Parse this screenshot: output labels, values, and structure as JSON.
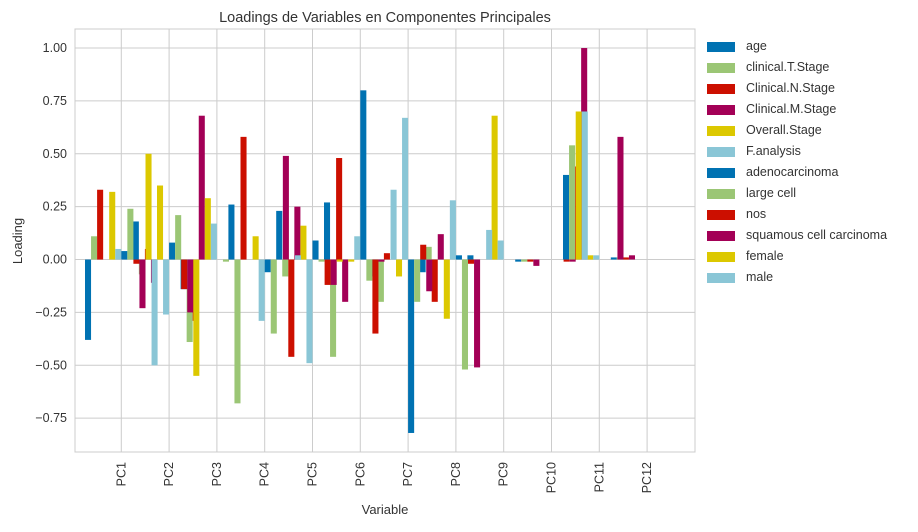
{
  "chart_data": {
    "type": "bar",
    "title": "Loadings de Variables en Componentes Principales",
    "xlabel": "Variable",
    "ylabel": "Loading",
    "ylim": [
      -0.91,
      1.09
    ],
    "yticks": [
      1.0,
      0.75,
      0.5,
      0.25,
      0.0,
      -0.25,
      -0.5,
      -0.75
    ],
    "ytick_labels": [
      "1.00",
      "0.75",
      "0.50",
      "0.25",
      "0.00",
      "−0.25",
      "−0.50",
      "−0.75"
    ],
    "grid": true,
    "legend_position": "outside-right",
    "categories": [
      "PC1",
      "PC2",
      "PC3",
      "PC4",
      "PC5",
      "PC6",
      "PC7",
      "PC8",
      "PC9",
      "PC10",
      "PC11",
      "PC12"
    ],
    "series": [
      {
        "name": "age",
        "color": "#0072b2",
        "values": [
          -0.38,
          0.18,
          -0.14,
          0.26,
          0.23,
          0.27,
          -0.08,
          -0.06,
          0.02,
          -0.01,
          0.4,
          0.01
        ]
      },
      {
        "name": "clinical.T.Stage",
        "color": "#9bc675",
        "values": [
          0.11,
          -0.07,
          -0.39,
          -0.68,
          -0.08,
          -0.46,
          -0.2,
          0.06,
          0.0,
          -0.01,
          0.54,
          0.01
        ]
      },
      {
        "name": "Clinical.N.Stage",
        "color": "#cc0f00",
        "values": [
          0.33,
          0.05,
          -0.29,
          0.58,
          -0.46,
          0.48,
          0.03,
          -0.2,
          0.0,
          -0.01,
          0.44,
          0.01
        ]
      },
      {
        "name": "Clinical.M.Stage",
        "color": "#a30056",
        "values": [
          0.0,
          -0.11,
          0.68,
          0.0,
          0.25,
          -0.2,
          0.0,
          0.12,
          0.0,
          -0.03,
          1.0,
          0.02
        ]
      },
      {
        "name": "Overall.Stage",
        "color": "#dcc800",
        "values": [
          0.32,
          0.35,
          0.29,
          0.11,
          0.16,
          -0.01,
          -0.08,
          -0.28,
          0.68,
          0.0,
          0.02,
          0.0
        ]
      },
      {
        "name": "F.analysis",
        "color": "#8ac6d6",
        "values": [
          0.05,
          -0.26,
          0.17,
          -0.29,
          -0.49,
          0.11,
          0.67,
          0.28,
          0.09,
          0.0,
          0.02,
          0.0
        ]
      },
      {
        "name": "adenocarcinoma",
        "color": "#0072b2",
        "values": [
          0.04,
          0.08,
          0.0,
          -0.06,
          0.09,
          0.8,
          -0.82,
          0.02,
          0.0,
          0.0,
          0.0,
          0.0
        ]
      },
      {
        "name": "large cell",
        "color": "#9bc675",
        "values": [
          0.24,
          0.21,
          -0.01,
          -0.35,
          -0.01,
          -0.1,
          -0.2,
          -0.52,
          0.0,
          0.0,
          0.0,
          0.0
        ]
      },
      {
        "name": "nos",
        "color": "#cc0f00",
        "values": [
          -0.02,
          -0.14,
          0.0,
          0.0,
          -0.12,
          -0.35,
          0.07,
          -0.02,
          0.0,
          -0.01,
          0.0,
          0.0
        ]
      },
      {
        "name": "squamous cell carcinoma",
        "color": "#a30056",
        "values": [
          -0.23,
          -0.25,
          0.0,
          0.49,
          -0.12,
          -0.01,
          -0.15,
          -0.51,
          0.0,
          -0.01,
          0.58,
          0.0
        ]
      },
      {
        "name": "female",
        "color": "#dcc800",
        "values": [
          0.5,
          -0.55,
          0.0,
          0.0,
          -0.01,
          0.0,
          0.0,
          0.0,
          0.0,
          0.7,
          0.0,
          0.0
        ]
      },
      {
        "name": "male",
        "color": "#8ac6d6",
        "values": [
          -0.5,
          0.0,
          0.0,
          0.02,
          0.0,
          0.33,
          0.0,
          0.14,
          0.0,
          0.7,
          0.0,
          0.0
        ]
      }
    ]
  }
}
